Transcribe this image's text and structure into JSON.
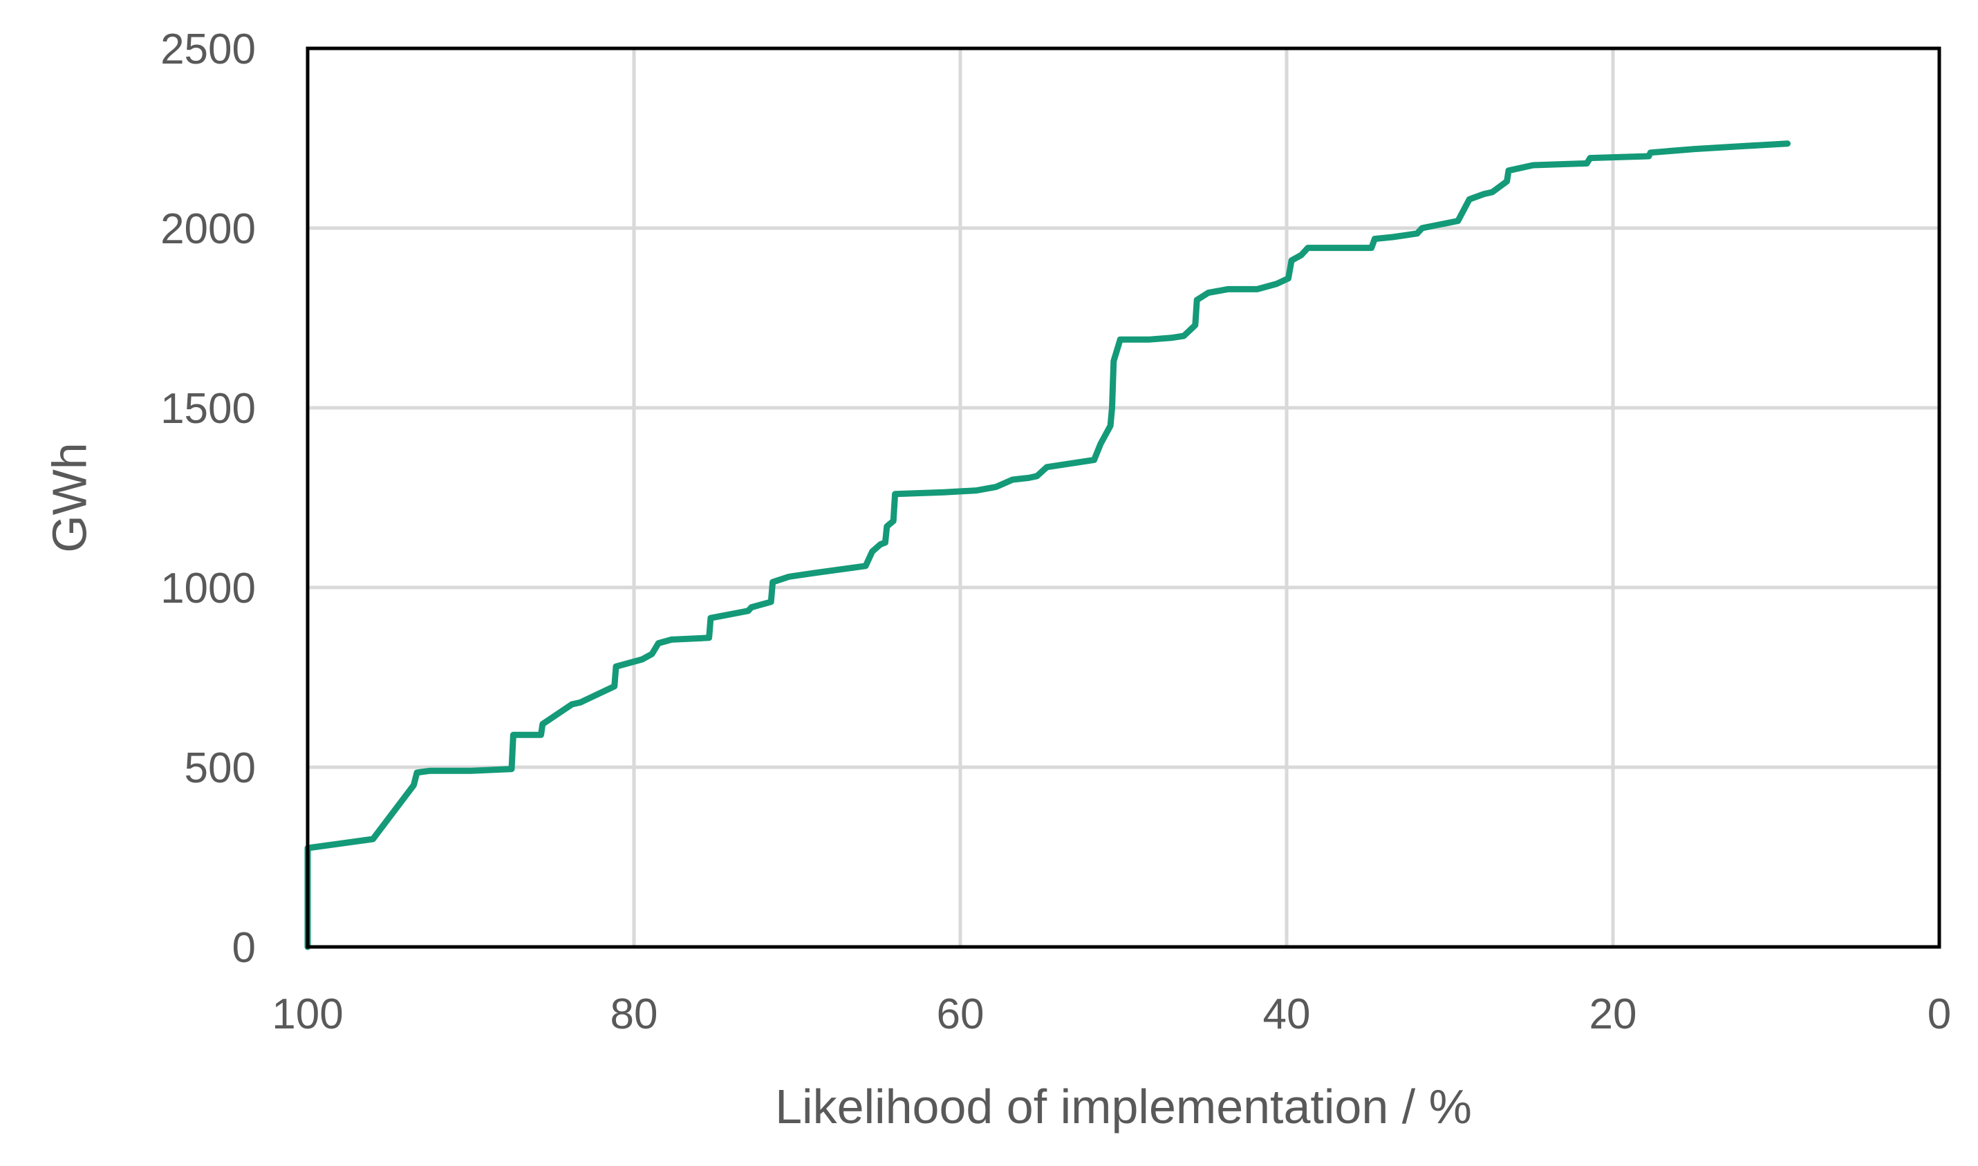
{
  "chart_data": {
    "type": "line",
    "xlabel": "Likelihood of implementation / %",
    "ylabel": "GWh",
    "xlim": [
      100,
      0
    ],
    "ylim": [
      0,
      2500
    ],
    "x_reversed": true,
    "xticks": [
      100,
      80,
      60,
      40,
      20,
      0
    ],
    "yticks": [
      0,
      500,
      1000,
      1500,
      2000,
      2500
    ],
    "grid": true,
    "legend": "none",
    "series": [
      {
        "color": "#149a78",
        "points": [
          [
            100,
            0
          ],
          [
            100,
            275
          ],
          [
            96,
            300
          ],
          [
            93.5,
            450
          ],
          [
            93.3,
            485
          ],
          [
            92.5,
            490
          ],
          [
            90,
            490
          ],
          [
            87.5,
            495
          ],
          [
            87.4,
            590
          ],
          [
            85.7,
            590
          ],
          [
            85.6,
            620
          ],
          [
            83.8,
            675
          ],
          [
            83.3,
            680
          ],
          [
            81.2,
            725
          ],
          [
            81.1,
            780
          ],
          [
            79.5,
            800
          ],
          [
            78.9,
            815
          ],
          [
            78.5,
            845
          ],
          [
            77.7,
            855
          ],
          [
            75.4,
            860
          ],
          [
            75.3,
            915
          ],
          [
            73,
            935
          ],
          [
            72.8,
            945
          ],
          [
            71.6,
            960
          ],
          [
            71.5,
            1015
          ],
          [
            70.5,
            1030
          ],
          [
            69,
            1040
          ],
          [
            65.8,
            1060
          ],
          [
            65.4,
            1100
          ],
          [
            64.9,
            1120
          ],
          [
            64.6,
            1125
          ],
          [
            64.5,
            1170
          ],
          [
            64.1,
            1185
          ],
          [
            64,
            1260
          ],
          [
            61,
            1265
          ],
          [
            59,
            1270
          ],
          [
            57.8,
            1280
          ],
          [
            56.8,
            1300
          ],
          [
            55.8,
            1305
          ],
          [
            55.3,
            1310
          ],
          [
            54.7,
            1335
          ],
          [
            51.8,
            1355
          ],
          [
            51.4,
            1400
          ],
          [
            50.8,
            1450
          ],
          [
            50.7,
            1500
          ],
          [
            50.6,
            1630
          ],
          [
            50.2,
            1690
          ],
          [
            48.4,
            1690
          ],
          [
            47,
            1695
          ],
          [
            46.3,
            1700
          ],
          [
            45.6,
            1730
          ],
          [
            45.5,
            1800
          ],
          [
            44.8,
            1820
          ],
          [
            43.6,
            1830
          ],
          [
            41.8,
            1830
          ],
          [
            40.6,
            1845
          ],
          [
            39.9,
            1860
          ],
          [
            39.7,
            1910
          ],
          [
            39.1,
            1925
          ],
          [
            38.7,
            1945
          ],
          [
            34.8,
            1945
          ],
          [
            34.6,
            1970
          ],
          [
            33.5,
            1975
          ],
          [
            32,
            1985
          ],
          [
            31.7,
            2000
          ],
          [
            29.5,
            2020
          ],
          [
            28.8,
            2080
          ],
          [
            27.9,
            2095
          ],
          [
            27.4,
            2100
          ],
          [
            26.5,
            2130
          ],
          [
            26.4,
            2160
          ],
          [
            24.9,
            2175
          ],
          [
            21.6,
            2180
          ],
          [
            21.4,
            2195
          ],
          [
            17.8,
            2200
          ],
          [
            17.7,
            2210
          ],
          [
            15,
            2220
          ],
          [
            12,
            2228
          ],
          [
            9.3,
            2235
          ]
        ]
      }
    ]
  }
}
